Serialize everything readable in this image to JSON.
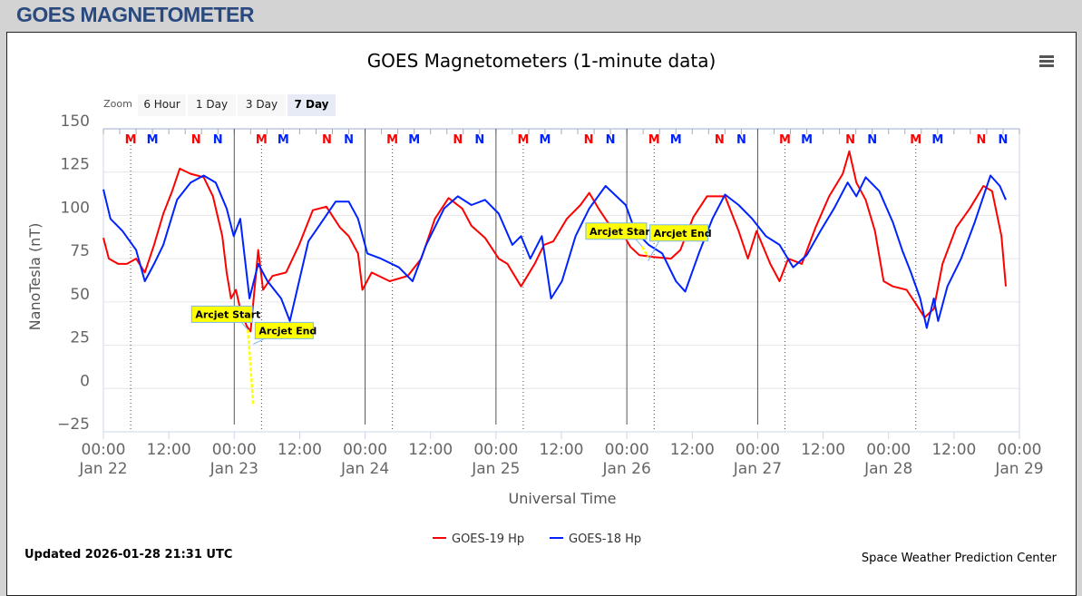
{
  "page_title": "GOES MAGNETOMETER",
  "menu_icon": "hamburger-menu-icon",
  "zoom": {
    "label": "Zoom",
    "buttons": [
      "6 Hour",
      "1 Day",
      "3 Day",
      "7 Day"
    ],
    "selected": "7 Day"
  },
  "footer": {
    "updated": "Updated 2026-01-28 21:31 UTC",
    "credit": "Space Weather Prediction Center"
  },
  "chart_data": {
    "type": "line",
    "title": "GOES Magnetometers (1-minute data)",
    "xlabel": "Universal Time",
    "ylabel": "NanoTesla (nT)",
    "x_units": "hours since 2026-01-22 00:00 UTC",
    "xlim": [
      0,
      168
    ],
    "ylim": [
      -25,
      150
    ],
    "yticks": [
      "150",
      "125",
      "100",
      "75",
      "50",
      "25",
      "0",
      "−25"
    ],
    "ytick_values": [
      150,
      125,
      100,
      75,
      50,
      25,
      0,
      -25
    ],
    "xticks": [
      {
        "time": "00:00",
        "date": "Jan 22",
        "h": 0
      },
      {
        "time": "12:00",
        "date": "",
        "h": 12
      },
      {
        "time": "00:00",
        "date": "Jan 23",
        "h": 24
      },
      {
        "time": "12:00",
        "date": "",
        "h": 36
      },
      {
        "time": "00:00",
        "date": "Jan 24",
        "h": 48
      },
      {
        "time": "12:00",
        "date": "",
        "h": 60
      },
      {
        "time": "00:00",
        "date": "Jan 25",
        "h": 72
      },
      {
        "time": "12:00",
        "date": "",
        "h": 84
      },
      {
        "time": "00:00",
        "date": "Jan 26",
        "h": 96
      },
      {
        "time": "12:00",
        "date": "",
        "h": 108
      },
      {
        "time": "00:00",
        "date": "Jan 27",
        "h": 120
      },
      {
        "time": "12:00",
        "date": "",
        "h": 132
      },
      {
        "time": "00:00",
        "date": "Jan 28",
        "h": 144
      },
      {
        "time": "12:00",
        "date": "",
        "h": 156
      },
      {
        "time": "00:00",
        "date": "Jan 29",
        "h": 168
      }
    ],
    "grid": true,
    "legend_position": "bottom-center",
    "series": [
      {
        "name": "GOES-19 Hp",
        "color": "#ff0000",
        "x": [
          0,
          1,
          2.7,
          4.3,
          6,
          7.6,
          9.3,
          11,
          12.6,
          14,
          16,
          18.4,
          20.1,
          21.8,
          22.6,
          23.4,
          24.3,
          25.1,
          26.3,
          27,
          28.4,
          29.3,
          31,
          33.5,
          35.9,
          38.4,
          40.9,
          43.4,
          45,
          46.7,
          47.5,
          49.2,
          52.5,
          55.8,
          58.3,
          60.8,
          63.3,
          65.8,
          67.5,
          70,
          72.5,
          74.1,
          76.6,
          79.1,
          80.8,
          82.5,
          85,
          87.5,
          89.1,
          90.8,
          92.5,
          95,
          96.6,
          98.3,
          100.8,
          104.1,
          105.8,
          108.2,
          110.7,
          114,
          116.5,
          118.2,
          119.8,
          122.3,
          124,
          125.6,
          128.1,
          130.6,
          133.1,
          135.6,
          136.8,
          138.1,
          139.8,
          141.5,
          143.1,
          144.8,
          147.3,
          149,
          150.6,
          152.3,
          153.9,
          156.4,
          158.9,
          161.4,
          163,
          164.7,
          165.5
        ],
        "y": [
          87,
          75,
          72,
          72,
          75,
          67,
          83,
          101,
          114,
          127,
          124,
          122,
          111,
          88,
          67,
          52,
          57,
          46,
          36,
          33,
          80,
          57,
          65,
          67,
          83,
          103,
          105,
          93,
          88,
          78,
          57,
          67,
          62,
          65,
          75,
          98,
          110,
          104,
          94,
          87,
          75,
          72,
          59,
          72,
          83,
          85,
          98,
          106,
          113,
          104,
          96,
          91,
          82,
          77,
          76,
          75,
          80,
          99,
          111,
          111,
          91,
          75,
          91,
          72,
          62,
          75,
          72,
          93,
          111,
          124,
          137,
          119,
          109,
          91,
          62,
          59,
          57,
          49,
          41,
          46,
          72,
          93,
          104,
          117,
          114,
          88,
          59
        ]
      },
      {
        "name": "GOES-18 Hp",
        "color": "#0022ff",
        "x": [
          0,
          1.3,
          3.5,
          6,
          7.6,
          9.3,
          11,
          13.5,
          16,
          18.4,
          20.6,
          22.6,
          23.9,
          25.1,
          26.8,
          28.4,
          30.1,
          32.6,
          34.2,
          35.9,
          37.6,
          40,
          42.6,
          45,
          46.7,
          48.4,
          50.9,
          54.2,
          56.7,
          59.2,
          62.5,
          65,
          67.5,
          70,
          72.5,
          75,
          76.6,
          78.3,
          80.4,
          82.1,
          84.1,
          86.6,
          89.1,
          92.1,
          94.1,
          95.8,
          97.5,
          100,
          102.5,
          105,
          106.7,
          109.2,
          111.7,
          114,
          116.5,
          119,
          121.5,
          124,
          126.5,
          129,
          131.5,
          134,
          136.5,
          138.1,
          139.8,
          142.3,
          144.8,
          146.5,
          148.1,
          149.8,
          151,
          152.3,
          153.1,
          154.8,
          157.3,
          159.8,
          161.4,
          162.7,
          164.4,
          165.5
        ],
        "y": [
          115,
          98,
          91,
          80,
          62,
          72,
          83,
          109,
          119,
          123,
          119,
          104,
          88,
          98,
          52,
          72,
          62,
          52,
          39,
          62,
          85,
          96,
          108,
          108,
          98,
          78,
          75,
          70,
          62,
          83,
          104,
          111,
          106,
          109,
          101,
          83,
          88,
          75,
          88,
          52,
          62,
          88,
          104,
          117,
          111,
          106,
          91,
          83,
          78,
          62,
          56,
          78,
          98,
          112,
          106,
          98,
          88,
          83,
          70,
          77,
          91,
          104,
          119,
          111,
          122,
          114,
          96,
          80,
          67,
          52,
          35,
          52,
          39,
          59,
          75,
          96,
          111,
          123,
          117,
          109
        ]
      }
    ],
    "markers": [
      {
        "label": "M",
        "color": "#ff0000",
        "hours": [
          5,
          29,
          53,
          77,
          101,
          125,
          149
        ],
        "dotted_line": true
      },
      {
        "label": "M",
        "color": "#0022ff",
        "hours": [
          9,
          33,
          57,
          81,
          105,
          129,
          153
        ],
        "dotted_line": false
      },
      {
        "label": "N",
        "color": "#ff0000",
        "hours": [
          17,
          41,
          65,
          89,
          113,
          137,
          161
        ],
        "dotted_line": false
      },
      {
        "label": "N",
        "color": "#0022ff",
        "hours": [
          21,
          45,
          69,
          93,
          117,
          141,
          165
        ],
        "dotted_line": false
      }
    ],
    "day_lines_hours": [
      24,
      48,
      72,
      96,
      120
    ],
    "annotations": [
      {
        "start_label": "Arcjet Start",
        "end_label": "Arcjet End",
        "start_h": 26.5,
        "end_h": 27.5,
        "value_start": 34,
        "value_end": -10,
        "color": "#ffff00"
      },
      {
        "start_label": "Arcjet Start",
        "end_label": "Arcjet End",
        "start_h": 98.8,
        "end_h": 99.9,
        "value_start": 82,
        "value_end": 76,
        "color": "#ffff00"
      }
    ]
  }
}
